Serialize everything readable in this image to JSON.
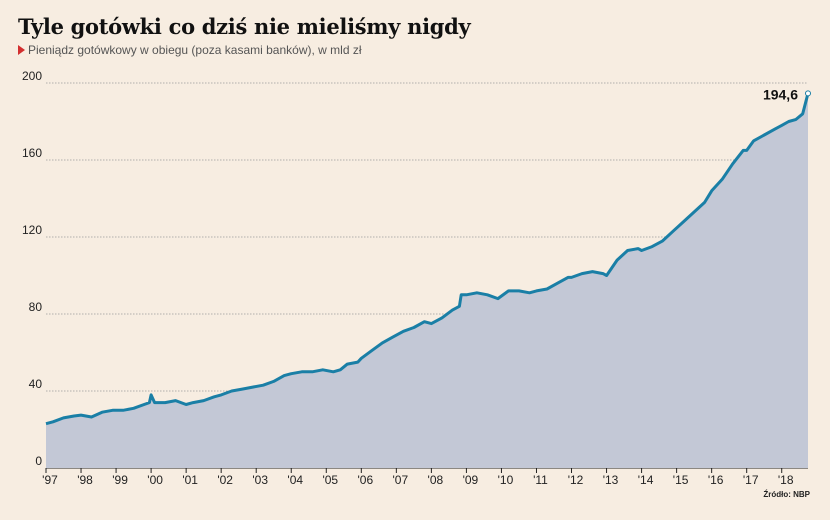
{
  "title": "Tyle gotówki co dziś nie mieliśmy nigdy",
  "subtitle": "Pieniądz gotówkowy w obiegu (poza kasami banków), w mld zł",
  "source": "Źródło: NBP",
  "colors": {
    "line": "#1a7fa6",
    "area": "#c3c8d6",
    "grid": "#999999",
    "marker": "#d32f2f"
  },
  "chart_data": {
    "type": "area",
    "title": "Tyle gotówki co dziś nie mieliśmy nigdy",
    "subtitle": "Pieniądz gotówkowy w obiegu (poza kasami banków), w mld zł",
    "xlabel": "",
    "ylabel": "",
    "ylim": [
      0,
      200
    ],
    "xlim": [
      1997.0,
      2018.75
    ],
    "grid": true,
    "y_ticks": [
      "0",
      "40",
      "80",
      "120",
      "160",
      "200"
    ],
    "x_ticks": [
      "'97",
      "'98",
      "'99",
      "'00",
      "'01",
      "'02",
      "'03",
      "'04",
      "'05",
      "'06",
      "'07",
      "'08",
      "'09",
      "'10",
      "'11",
      "'12",
      "'13",
      "'14",
      "'15",
      "'16",
      "'17",
      "'18"
    ],
    "end_label": "194,6",
    "series": [
      {
        "x": [
          1997.0,
          1997.2,
          1997.5,
          1997.8,
          1998.0,
          1998.3,
          1998.6,
          1998.9,
          1999.2,
          1999.5,
          1999.8,
          1999.95,
          2000.0,
          2000.1,
          2000.4,
          2000.7,
          2001.0,
          2001.2,
          2001.5,
          2001.8,
          2002.0,
          2002.3,
          2002.6,
          2002.9,
          2003.2,
          2003.5,
          2003.8,
          2004.0,
          2004.3,
          2004.6,
          2004.9,
          2005.2,
          2005.4,
          2005.6,
          2005.9,
          2006.0,
          2006.3,
          2006.6,
          2006.9,
          2007.2,
          2007.5,
          2007.8,
          2008.0,
          2008.3,
          2008.6,
          2008.8,
          2008.85,
          2009.0,
          2009.3,
          2009.6,
          2009.9,
          2010.2,
          2010.5,
          2010.8,
          2011.0,
          2011.3,
          2011.6,
          2011.9,
          2012.0,
          2012.3,
          2012.6,
          2012.9,
          2013.0,
          2013.3,
          2013.6,
          2013.9,
          2014.0,
          2014.3,
          2014.6,
          2014.9,
          2015.2,
          2015.5,
          2015.8,
          2016.0,
          2016.3,
          2016.6,
          2016.9,
          2017.0,
          2017.2,
          2017.5,
          2017.8,
          2018.0,
          2018.2,
          2018.4,
          2018.6,
          2018.75
        ],
        "y": [
          23,
          24,
          26,
          27,
          27.5,
          26.5,
          29,
          30,
          30,
          31,
          33,
          34,
          38,
          34,
          34,
          35,
          33,
          34,
          35,
          37,
          38,
          40,
          41,
          42,
          43,
          45,
          48,
          49,
          50,
          50,
          51,
          50,
          51,
          54,
          55,
          57,
          61,
          65,
          68,
          71,
          73,
          76,
          75,
          78,
          82,
          84,
          90,
          90,
          91,
          90,
          88,
          92,
          92,
          91,
          92,
          93,
          96,
          99,
          99,
          101,
          102,
          101,
          100,
          108,
          113,
          114,
          113,
          115,
          118,
          123,
          128,
          133,
          138,
          144,
          150,
          158,
          165,
          165,
          170,
          173,
          176,
          178,
          180,
          181,
          184,
          194.6
        ]
      }
    ]
  }
}
